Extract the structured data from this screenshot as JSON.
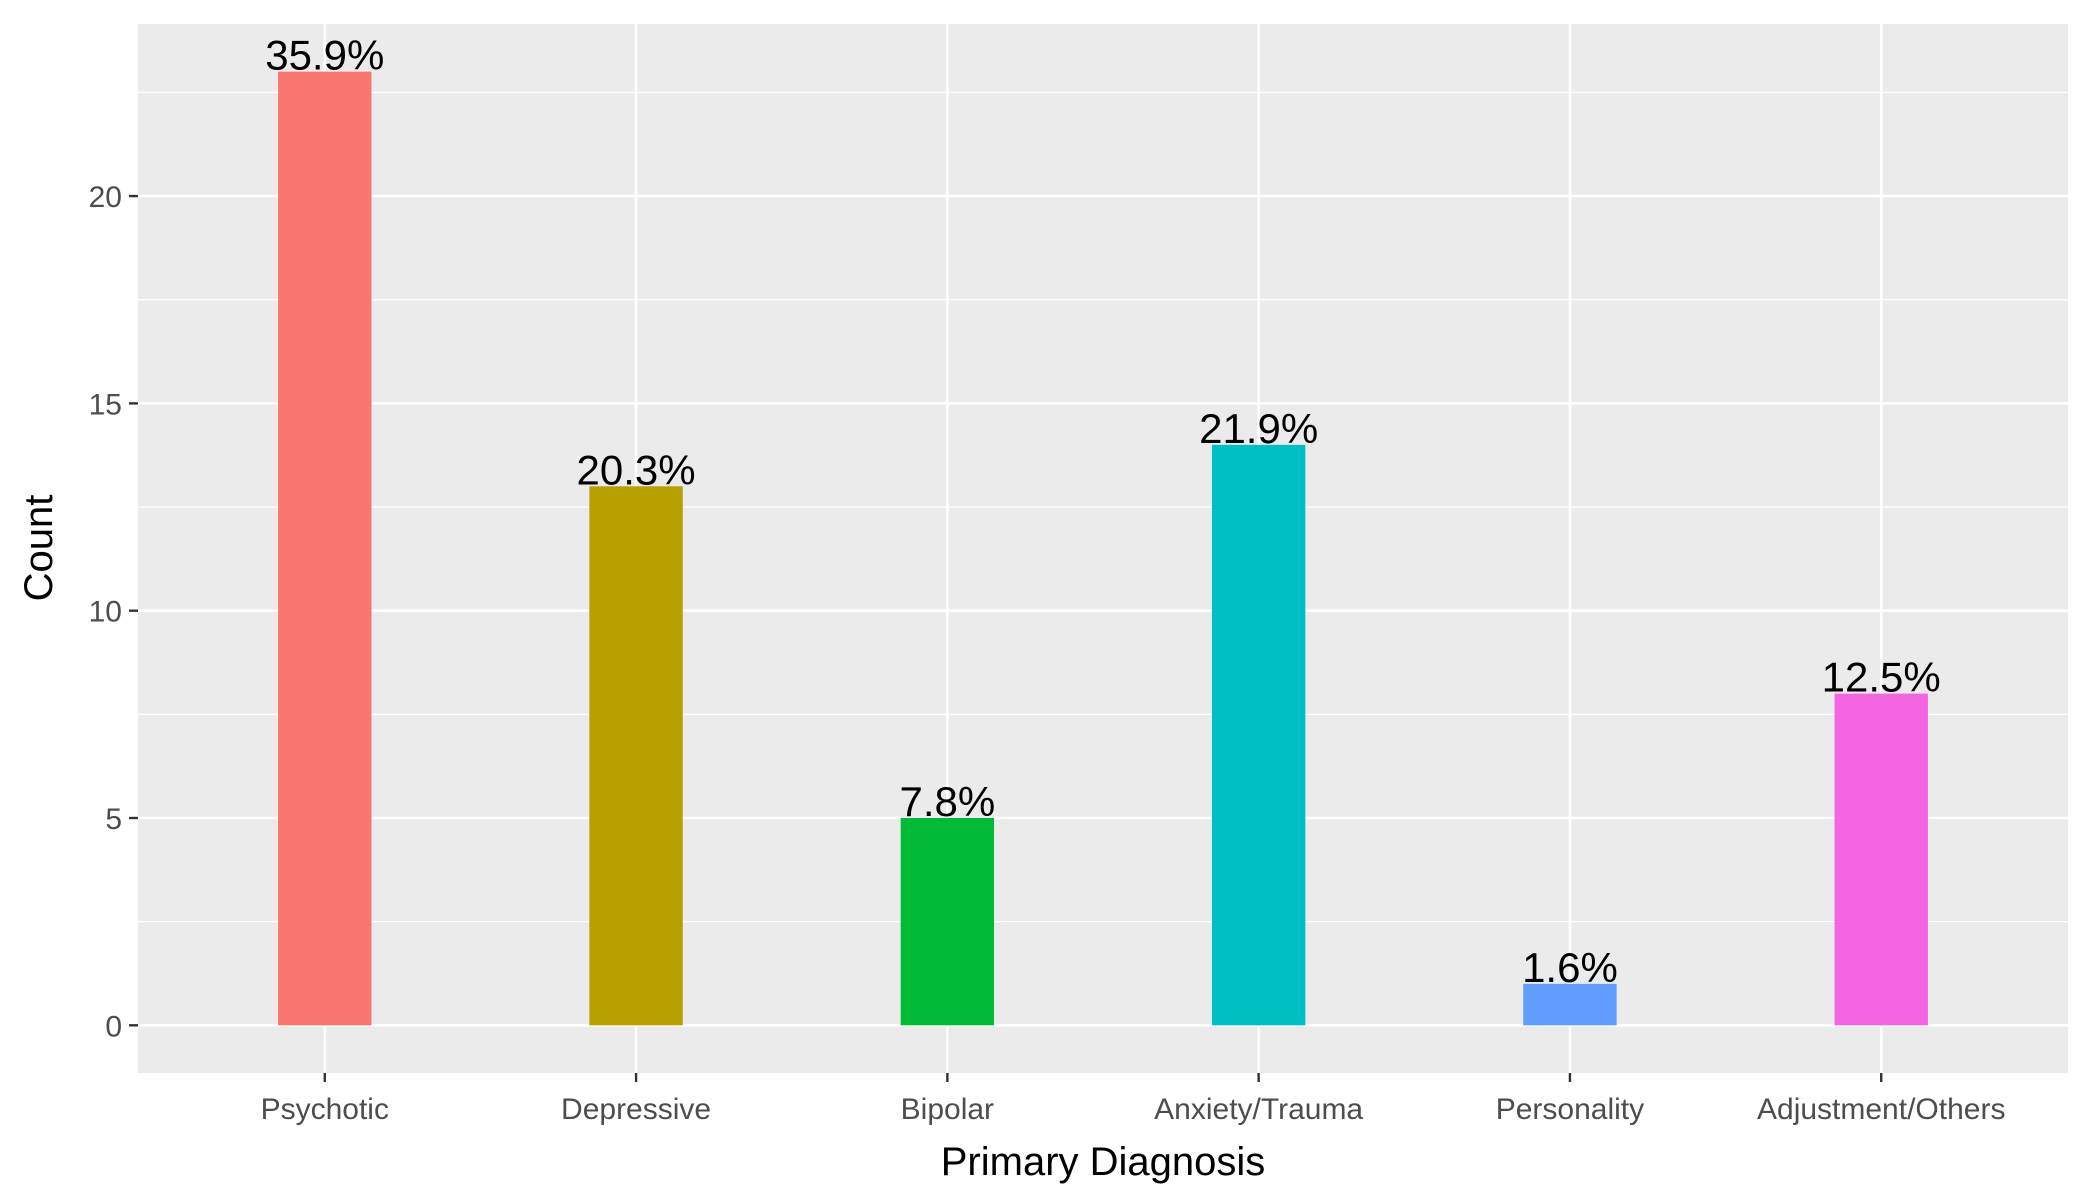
{
  "chart_data": {
    "type": "bar",
    "title": "",
    "xlabel": "Primary Diagnosis",
    "ylabel": "Count",
    "categories": [
      "Psychotic",
      "Depressive",
      "Bipolar",
      "Anxiety/Trauma",
      "Personality",
      "Adjustment/Others"
    ],
    "values": [
      23,
      13,
      5,
      14,
      1,
      8
    ],
    "labels": [
      "35.9%",
      "20.3%",
      "7.8%",
      "21.9%",
      "1.6%",
      "12.5%"
    ],
    "colors": [
      "#F8766D",
      "#B79F00",
      "#00BA38",
      "#00BFC4",
      "#619CFF",
      "#F564E3"
    ],
    "ylim": [
      -1.15,
      24.15
    ],
    "yticks": [
      0,
      5,
      10,
      15,
      20
    ],
    "grid": true,
    "legend": "none"
  }
}
